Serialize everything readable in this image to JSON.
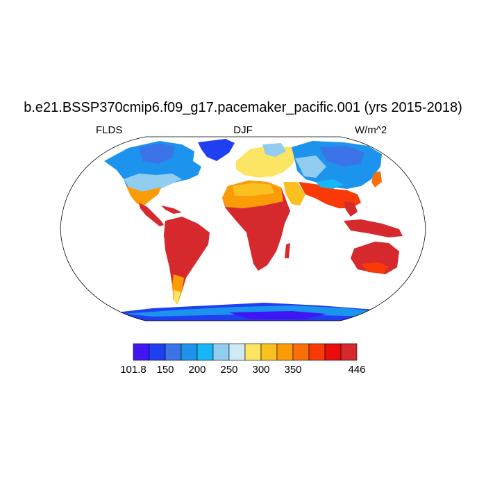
{
  "figure": {
    "title": "b.e21.BSSP370cmip6.f09_g17.pacemaker_pacific.001 (yrs 2015-2018)",
    "left_label": "FLDS",
    "center_label": "DJF",
    "right_label": "W/m^2"
  },
  "colorbar": {
    "colors": [
      "#4016f5",
      "#1f3ff0",
      "#3b74e8",
      "#1c94ed",
      "#18b6f5",
      "#90cdf0",
      "#cfe9f7",
      "#fbe563",
      "#f9c020",
      "#fb9c07",
      "#f97009",
      "#f93a06",
      "#eb0c0c",
      "#d6292e"
    ],
    "labels": [
      {
        "text": "101.8",
        "index": 0
      },
      {
        "text": "150",
        "index": 2
      },
      {
        "text": "200",
        "index": 4
      },
      {
        "text": "250",
        "index": 6
      },
      {
        "text": "300",
        "index": 8
      },
      {
        "text": "350",
        "index": 10
      },
      {
        "text": "446",
        "index": 14
      }
    ]
  },
  "map": {
    "projection": "Robinson",
    "ocean_color": "#ffffff",
    "outline_color": "#000000"
  }
}
